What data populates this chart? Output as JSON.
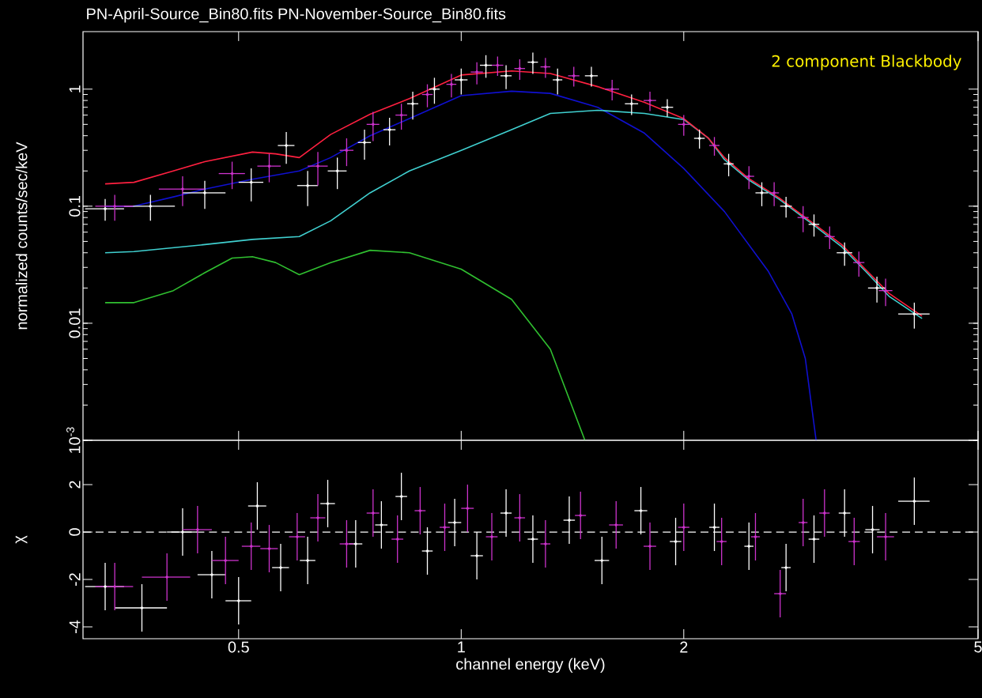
{
  "chart_data": [
    {
      "type": "line",
      "title": "PN-April-Source_Bin80.fits PN-November-Source_Bin80.fits",
      "ylabel": "normalized counts/sec/keV",
      "annotations": [
        "2 component Blackbody"
      ],
      "log": "xy",
      "tick_labels": "y",
      "xlim": [
        0.308,
        5
      ],
      "xticks": [
        0.5,
        1,
        2,
        5
      ],
      "ylim": [
        0.001,
        3.1
      ],
      "yticks": [
        {
          "value": 0.001,
          "label": "10$^{-3}$"
        },
        0.01,
        0.1,
        1
      ],
      "series": [
        {
          "color": "#1010d0",
          "x": [
            0.33,
            0.361,
            0.408,
            0.45,
            0.522,
            0.604,
            0.666,
            0.753,
            0.851,
            1.0,
            1.17,
            1.32,
            1.53,
            1.77,
            2.0,
            2.27,
            2.6,
            2.8,
            2.92,
            3.02
          ],
          "values": [
            0.1,
            0.1,
            0.12,
            0.14,
            0.17,
            0.2,
            0.26,
            0.4,
            0.56,
            0.88,
            0.96,
            0.92,
            0.7,
            0.42,
            0.21,
            0.09,
            0.028,
            0.012,
            0.005,
            0.001
          ]
        },
        {
          "color": "#40d0d0",
          "x": [
            0.33,
            0.361,
            0.45,
            0.522,
            0.604,
            0.666,
            0.753,
            0.851,
            1.0,
            1.17,
            1.32,
            1.53,
            1.77,
            2.0,
            2.16,
            2.27,
            2.44,
            2.69,
            2.97,
            3.27,
            3.52,
            3.79,
            4.2
          ],
          "values": [
            0.04,
            0.041,
            0.047,
            0.052,
            0.055,
            0.075,
            0.13,
            0.2,
            0.3,
            0.45,
            0.62,
            0.66,
            0.62,
            0.55,
            0.38,
            0.25,
            0.17,
            0.115,
            0.072,
            0.045,
            0.028,
            0.017,
            0.011
          ]
        },
        {
          "color": "#30c030",
          "x": [
            0.33,
            0.361,
            0.408,
            0.45,
            0.49,
            0.522,
            0.561,
            0.604,
            0.666,
            0.753,
            0.851,
            1.0,
            1.17,
            1.32,
            1.47
          ],
          "values": [
            0.015,
            0.015,
            0.019,
            0.027,
            0.036,
            0.037,
            0.033,
            0.026,
            0.033,
            0.042,
            0.04,
            0.029,
            0.016,
            0.006,
            0.001
          ]
        },
        {
          "color": "#ff2040",
          "x": [
            0.33,
            0.361,
            0.408,
            0.45,
            0.522,
            0.561,
            0.604,
            0.666,
            0.753,
            0.851,
            1.0,
            1.17,
            1.32,
            1.53,
            1.77,
            2.0,
            2.16,
            2.27,
            2.44,
            2.69,
            2.97,
            3.27,
            3.52,
            3.79,
            4.2
          ],
          "values": [
            0.155,
            0.16,
            0.2,
            0.24,
            0.29,
            0.28,
            0.26,
            0.41,
            0.61,
            0.83,
            1.32,
            1.43,
            1.36,
            1.05,
            0.77,
            0.56,
            0.38,
            0.26,
            0.175,
            0.118,
            0.074,
            0.047,
            0.029,
            0.018,
            0.0115
          ]
        },
        {
          "type": "scatter",
          "color": "#ffffff",
          "x": [
            0.33,
            0.38,
            0.45,
            0.52,
            0.58,
            0.62,
            0.68,
            0.74,
            0.8,
            0.86,
            0.92,
            1.0,
            1.08,
            1.15,
            1.25,
            1.35,
            1.5,
            1.7,
            1.9,
            2.1,
            2.3,
            2.55,
            2.75,
            3.0,
            3.3,
            3.65,
            4.1
          ],
          "values": [
            0.095,
            0.1,
            0.13,
            0.16,
            0.33,
            0.15,
            0.2,
            0.35,
            0.45,
            0.75,
            1.0,
            1.2,
            1.6,
            1.3,
            1.7,
            1.2,
            1.3,
            0.75,
            0.7,
            0.38,
            0.23,
            0.13,
            0.1,
            0.07,
            0.04,
            0.02,
            0.012
          ],
          "errors": [
            0.02,
            0.025,
            0.035,
            0.05,
            0.1,
            0.05,
            0.06,
            0.1,
            0.12,
            0.2,
            0.25,
            0.3,
            0.35,
            0.3,
            0.35,
            0.3,
            0.25,
            0.15,
            0.12,
            0.07,
            0.05,
            0.03,
            0.02,
            0.015,
            0.009,
            0.005,
            0.003
          ],
          "xerrors": [
            0.02,
            0.03,
            0.03,
            0.02,
            0.015,
            0.02,
            0.02,
            0.015,
            0.015,
            0.015,
            0.015,
            0.02,
            0.02,
            0.02,
            0.02,
            0.02,
            0.03,
            0.035,
            0.035,
            0.035,
            0.035,
            0.05,
            0.05,
            0.05,
            0.08,
            0.1,
            0.2
          ]
        },
        {
          "type": "scatter",
          "color": "#cc33cc",
          "x": [
            0.34,
            0.42,
            0.49,
            0.55,
            0.64,
            0.7,
            0.76,
            0.83,
            0.9,
            0.97,
            1.05,
            1.12,
            1.2,
            1.3,
            1.42,
            1.6,
            1.8,
            2.0,
            2.2,
            2.45,
            2.65,
            2.9,
            3.15,
            3.45,
            3.75
          ],
          "values": [
            0.1,
            0.14,
            0.19,
            0.22,
            0.22,
            0.3,
            0.5,
            0.6,
            0.9,
            1.1,
            1.4,
            1.6,
            1.5,
            1.55,
            1.3,
            1.0,
            0.8,
            0.5,
            0.33,
            0.18,
            0.13,
            0.08,
            0.055,
            0.033,
            0.019
          ],
          "errors": [
            0.025,
            0.04,
            0.05,
            0.06,
            0.07,
            0.08,
            0.14,
            0.15,
            0.2,
            0.25,
            0.3,
            0.3,
            0.3,
            0.3,
            0.25,
            0.2,
            0.15,
            0.1,
            0.06,
            0.04,
            0.03,
            0.02,
            0.012,
            0.008,
            0.005
          ],
          "xerrors": [
            0.02,
            0.03,
            0.02,
            0.02,
            0.02,
            0.015,
            0.015,
            0.015,
            0.015,
            0.015,
            0.02,
            0.02,
            0.02,
            0.02,
            0.025,
            0.035,
            0.035,
            0.035,
            0.035,
            0.04,
            0.04,
            0.05,
            0.05,
            0.06,
            0.08
          ]
        }
      ]
    },
    {
      "type": "scatter",
      "xlabel": "channel energy (keV)",
      "ylabel": "χ",
      "log": "x",
      "xlim": [
        0.308,
        5
      ],
      "xticks": [
        0.5,
        1,
        2,
        5
      ],
      "ylim": [
        -4.5,
        3.87
      ],
      "yticks": [
        -4,
        -2,
        0,
        2
      ],
      "ref_lines": [
        {
          "axis": "y",
          "value": 0,
          "color": "#ffffff",
          "line_style": "dashed"
        }
      ],
      "series": [
        {
          "color": "#ffffff",
          "x": [
            0.33,
            0.37,
            0.42,
            0.46,
            0.5,
            0.53,
            0.57,
            0.62,
            0.66,
            0.72,
            0.78,
            0.83,
            0.9,
            0.98,
            1.05,
            1.15,
            1.25,
            1.4,
            1.55,
            1.75,
            1.95,
            2.2,
            2.45,
            2.75,
            3.0,
            3.3,
            3.6,
            4.1
          ],
          "values": [
            -2.3,
            -3.2,
            0.0,
            -1.8,
            -2.9,
            1.1,
            -1.5,
            -1.2,
            1.2,
            -0.5,
            0.3,
            1.5,
            -0.8,
            0.4,
            -1.0,
            0.8,
            -0.3,
            0.5,
            -1.2,
            0.9,
            -0.4,
            0.2,
            -0.6,
            -1.5,
            -0.3,
            0.8,
            0.1,
            1.3
          ],
          "errors": [
            1,
            1,
            1,
            1,
            1,
            1,
            1,
            1,
            1,
            1,
            1,
            1,
            1,
            1,
            1,
            1,
            1,
            1,
            1,
            1,
            1,
            1,
            1,
            1,
            1,
            1,
            1,
            1
          ],
          "xerrors": [
            0.02,
            0.03,
            0.02,
            0.02,
            0.02,
            0.015,
            0.015,
            0.015,
            0.015,
            0.015,
            0.015,
            0.015,
            0.015,
            0.02,
            0.02,
            0.02,
            0.02,
            0.025,
            0.035,
            0.035,
            0.035,
            0.035,
            0.035,
            0.04,
            0.05,
            0.06,
            0.08,
            0.2
          ]
        },
        {
          "color": "#cc33cc",
          "x": [
            0.34,
            0.4,
            0.44,
            0.48,
            0.52,
            0.55,
            0.6,
            0.64,
            0.7,
            0.76,
            0.82,
            0.88,
            0.95,
            1.02,
            1.1,
            1.2,
            1.3,
            1.45,
            1.62,
            1.8,
            2.0,
            2.25,
            2.5,
            2.7,
            2.9,
            3.1,
            3.4,
            3.75
          ],
          "values": [
            -2.3,
            -1.9,
            0.1,
            -1.2,
            -0.6,
            -0.7,
            -0.2,
            0.6,
            -0.5,
            0.8,
            -0.3,
            0.9,
            0.2,
            1.0,
            -0.2,
            0.6,
            -0.5,
            0.7,
            0.3,
            -0.6,
            0.2,
            -0.4,
            -0.2,
            -2.6,
            0.4,
            0.8,
            -0.4,
            -0.2
          ],
          "errors": [
            1,
            1,
            1,
            1,
            1,
            1,
            1,
            1,
            1,
            1,
            1,
            1,
            1,
            1,
            1,
            1,
            1,
            1,
            1,
            1,
            1,
            1,
            1,
            1,
            1,
            1,
            1,
            1
          ],
          "xerrors": [
            0.02,
            0.03,
            0.02,
            0.02,
            0.015,
            0.015,
            0.015,
            0.015,
            0.015,
            0.015,
            0.015,
            0.015,
            0.015,
            0.02,
            0.02,
            0.02,
            0.02,
            0.025,
            0.035,
            0.035,
            0.035,
            0.035,
            0.035,
            0.05,
            0.04,
            0.05,
            0.06,
            0.1
          ]
        }
      ]
    }
  ]
}
